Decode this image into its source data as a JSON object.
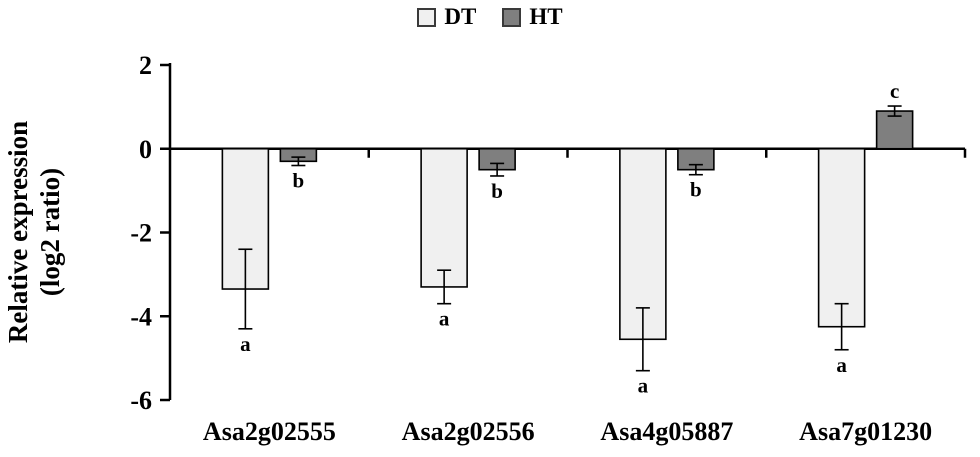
{
  "chart_data": {
    "type": "bar",
    "title": "",
    "xlabel": "",
    "ylabel_line1": "Relative expression",
    "ylabel_line2": "(log2 ratio)",
    "ylim": [
      -6,
      2
    ],
    "yticks": [
      2,
      0,
      -2,
      -4,
      -6
    ],
    "legend_position": "top-center",
    "grid": false,
    "categories": [
      "Asa2g02555",
      "Asa2g02556",
      "Asa4g05887",
      "Asa7g01230"
    ],
    "series": [
      {
        "name": "DT",
        "fill": "#f0f0f0",
        "values": [
          -3.35,
          -3.3,
          -4.55,
          -4.25
        ],
        "errors": [
          0.95,
          0.4,
          0.75,
          0.55
        ],
        "sig_labels": [
          "a",
          "a",
          "a",
          "a"
        ]
      },
      {
        "name": "HT",
        "fill": "#7f7f7f",
        "values": [
          -0.3,
          -0.5,
          -0.5,
          0.9
        ],
        "errors": [
          0.1,
          0.15,
          0.12,
          0.12
        ],
        "sig_labels": [
          "b",
          "b",
          "b",
          "c"
        ]
      }
    ],
    "colors": {
      "axis": "#000000",
      "bar_border": "#000000",
      "text": "#000000"
    }
  }
}
